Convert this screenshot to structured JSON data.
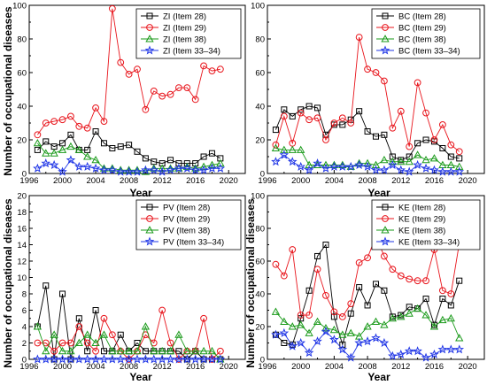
{
  "figure": {
    "ylabel": "Number of occupational diseases",
    "xlabel": "Year"
  },
  "chart_data": [
    {
      "type": "line",
      "prefix": "ZI",
      "xlim": [
        1996,
        2022
      ],
      "ylim": [
        0,
        100
      ],
      "xticks": [
        1996,
        2000,
        2004,
        2008,
        2012,
        2016,
        2020
      ],
      "yticks": [
        0,
        20,
        40,
        60,
        80,
        100
      ],
      "xlabel": "Year",
      "ylabel": "Number of occupational diseases",
      "legend": "top-right",
      "x": [
        1997,
        1998,
        1999,
        2000,
        2001,
        2002,
        2003,
        2004,
        2005,
        2006,
        2007,
        2008,
        2009,
        2010,
        2011,
        2012,
        2013,
        2014,
        2015,
        2016,
        2017,
        2018,
        2019
      ],
      "series": [
        {
          "name": "ZI (Item 28)",
          "color": "#000000",
          "marker": "square",
          "values": [
            14,
            19,
            16,
            18,
            23,
            14,
            14,
            25,
            18,
            15,
            16,
            17,
            13,
            9,
            7,
            6,
            8,
            6,
            6,
            6,
            10,
            12,
            9
          ]
        },
        {
          "name": "ZI (Item 29)",
          "color": "#e8141b",
          "marker": "circle",
          "values": [
            23,
            30,
            31,
            32,
            34,
            28,
            27,
            39,
            31,
            98,
            66,
            59,
            62,
            38,
            49,
            46,
            47,
            51,
            51,
            44,
            64,
            61,
            62
          ]
        },
        {
          "name": "ZI (Item 38)",
          "color": "#1a9a1a",
          "marker": "triangle",
          "values": [
            18,
            12,
            12,
            14,
            16,
            14,
            10,
            8,
            3,
            3,
            2,
            2,
            2,
            1,
            3,
            3,
            3,
            3,
            4,
            3,
            4,
            5,
            6
          ]
        },
        {
          "name": "ZI (Item 33–34)",
          "color": "#1f35e6",
          "marker": "star",
          "values": [
            3,
            6,
            5,
            1,
            8,
            4,
            4,
            3,
            2,
            2,
            1,
            1,
            1,
            2,
            2,
            1,
            2,
            3,
            3,
            2,
            2,
            3,
            3
          ]
        }
      ]
    },
    {
      "type": "line",
      "prefix": "BC",
      "xlim": [
        1996,
        2022
      ],
      "ylim": [
        0,
        100
      ],
      "xticks": [
        1996,
        2000,
        2004,
        2008,
        2012,
        2016,
        2020
      ],
      "yticks": [
        0,
        20,
        40,
        60,
        80,
        100
      ],
      "xlabel": "Year",
      "ylabel": "",
      "legend": "top-right",
      "x": [
        1997,
        1998,
        1999,
        2000,
        2001,
        2002,
        2003,
        2004,
        2005,
        2006,
        2007,
        2008,
        2009,
        2010,
        2011,
        2012,
        2013,
        2014,
        2015,
        2016,
        2017,
        2018,
        2019
      ],
      "series": [
        {
          "name": "BC (Item 28)",
          "color": "#000000",
          "marker": "square",
          "values": [
            26,
            38,
            34,
            38,
            40,
            39,
            23,
            29,
            29,
            32,
            37,
            25,
            22,
            23,
            10,
            8,
            10,
            18,
            20,
            19,
            15,
            10,
            9
          ]
        },
        {
          "name": "BC (Item 29)",
          "color": "#e8141b",
          "marker": "circle",
          "values": [
            17,
            34,
            18,
            36,
            32,
            33,
            20,
            30,
            33,
            30,
            81,
            62,
            60,
            55,
            27,
            37,
            16,
            54,
            36,
            20,
            29,
            17,
            13
          ]
        },
        {
          "name": "BC (Item 38)",
          "color": "#1a9a1a",
          "marker": "triangle",
          "values": [
            15,
            14,
            14,
            14,
            5,
            5,
            5,
            5,
            5,
            4,
            6,
            6,
            5,
            8,
            7,
            7,
            7,
            11,
            8,
            9,
            5,
            5,
            4
          ]
        },
        {
          "name": "BC (Item 33–34)",
          "color": "#1f35e6",
          "marker": "star",
          "values": [
            7,
            11,
            7,
            4,
            2,
            6,
            3,
            4,
            4,
            4,
            5,
            4,
            2,
            2,
            5,
            2,
            1,
            5,
            3,
            2,
            1,
            1,
            1
          ]
        }
      ]
    },
    {
      "type": "line",
      "prefix": "PV",
      "xlim": [
        1996,
        2022
      ],
      "ylim": [
        0,
        20
      ],
      "xticks": [
        1996,
        2000,
        2004,
        2008,
        2012,
        2016,
        2020
      ],
      "yticks": [
        0,
        2,
        4,
        6,
        8,
        10,
        12,
        14,
        16,
        18,
        20
      ],
      "xlabel": "Year",
      "ylabel": "Number of occupational diseases",
      "legend": "top-right",
      "x": [
        1997,
        1998,
        1999,
        2000,
        2001,
        2002,
        2003,
        2004,
        2005,
        2006,
        2007,
        2008,
        2009,
        2010,
        2011,
        2012,
        2013,
        2014,
        2015,
        2016,
        2017,
        2018,
        2019
      ],
      "series": [
        {
          "name": "PV (Item 28)",
          "color": "#000000",
          "marker": "square",
          "values": [
            4,
            9,
            0,
            8,
            0,
            5,
            1,
            6,
            1,
            1,
            3,
            1,
            2,
            1,
            1,
            1,
            1,
            1,
            0,
            1,
            0,
            0,
            0
          ]
        },
        {
          "name": "PV (Item 29)",
          "color": "#e8141b",
          "marker": "circle",
          "values": [
            2,
            2,
            1,
            2,
            2,
            4,
            2,
            1,
            5,
            3,
            1,
            0,
            1,
            3,
            2,
            6,
            2,
            0,
            1,
            1,
            5,
            0,
            1
          ]
        },
        {
          "name": "PV (Item 38)",
          "color": "#1a9a1a",
          "marker": "triangle",
          "values": [
            4,
            1,
            3,
            1,
            1,
            2,
            3,
            2,
            3,
            1,
            1,
            1,
            1,
            4,
            1,
            1,
            1,
            3,
            1,
            1,
            1,
            1,
            0
          ]
        },
        {
          "name": "PV (Item 33–34)",
          "color": "#1f35e6",
          "marker": "star",
          "values": [
            0,
            0,
            0,
            0,
            0,
            0,
            0,
            0,
            0,
            0,
            0,
            0,
            0,
            0,
            0,
            0,
            0,
            0,
            0,
            0,
            0,
            0,
            0
          ]
        }
      ]
    },
    {
      "type": "line",
      "prefix": "KE",
      "xlim": [
        1996,
        2022
      ],
      "ylim": [
        0,
        100
      ],
      "xticks": [
        1996,
        2000,
        2004,
        2008,
        2012,
        2016,
        2020
      ],
      "yticks": [
        0,
        20,
        40,
        60,
        80,
        100
      ],
      "xlabel": "Year",
      "ylabel": "",
      "legend": "top-right",
      "x": [
        1997,
        1998,
        1999,
        2000,
        2001,
        2002,
        2003,
        2004,
        2005,
        2006,
        2007,
        2008,
        2009,
        2010,
        2011,
        2012,
        2013,
        2014,
        2015,
        2016,
        2017,
        2018,
        2019
      ],
      "series": [
        {
          "name": "KE (Item 28)",
          "color": "#000000",
          "marker": "square",
          "values": [
            15,
            10,
            9,
            25,
            42,
            63,
            70,
            26,
            9,
            28,
            44,
            33,
            46,
            42,
            26,
            27,
            32,
            31,
            37,
            21,
            37,
            33,
            48
          ]
        },
        {
          "name": "KE (Item 29)",
          "color": "#e8141b",
          "marker": "circle",
          "values": [
            58,
            51,
            67,
            27,
            27,
            55,
            39,
            29,
            26,
            34,
            59,
            62,
            75,
            63,
            55,
            51,
            49,
            48,
            48,
            67,
            42,
            40,
            71
          ]
        },
        {
          "name": "KE (Item 38)",
          "color": "#1a9a1a",
          "marker": "triangle",
          "values": [
            29,
            23,
            20,
            21,
            16,
            23,
            19,
            18,
            15,
            16,
            14,
            20,
            23,
            21,
            25,
            26,
            28,
            31,
            27,
            20,
            24,
            25,
            13
          ]
        },
        {
          "name": "KE (Item 33–34)",
          "color": "#1f35e6",
          "marker": "star",
          "values": [
            15,
            16,
            8,
            10,
            4,
            11,
            17,
            12,
            6,
            1,
            10,
            11,
            13,
            10,
            2,
            3,
            5,
            5,
            1,
            3,
            6,
            6,
            6
          ]
        }
      ]
    }
  ]
}
